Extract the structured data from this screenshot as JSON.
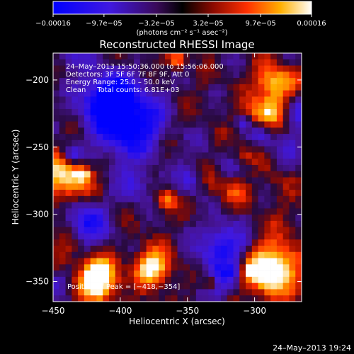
{
  "chart_data": {
    "type": "heatmap",
    "title": "Reconstructed RHESSI Image",
    "xlabel": "Heliocentric X (arcsec)",
    "ylabel": "Heliocentric Y (arcsec)",
    "xlim": [
      -450,
      -265
    ],
    "ylim": [
      -365,
      -180
    ],
    "x_ticks": [
      -450,
      -400,
      -350,
      -300
    ],
    "x_tick_labels": [
      "−450",
      "−400",
      "−350",
      "−300"
    ],
    "y_ticks": [
      -200,
      -250,
      -300,
      -350
    ],
    "y_tick_labels": [
      "−200",
      "−250",
      "−300",
      "−350"
    ],
    "colorbar": {
      "range": [
        -0.00016,
        0.00016
      ],
      "ticks": [
        -0.00016,
        -9.7e-05,
        -3.2e-05,
        3.2e-05,
        9.7e-05,
        0.00016
      ],
      "tick_labels": [
        "−0.00016",
        "−9.7e−05",
        "−3.2e−05",
        "3.2e−05",
        "9.7e−05",
        "0.00016"
      ],
      "unit_label": "(photons cm⁻² s⁻¹ asec⁻²)",
      "colors": [
        "#0000ff",
        "#5a1ecb",
        "#000000",
        "#c81e00",
        "#ff8c00",
        "#ffffff"
      ]
    },
    "annotations": [
      "24–May–2013 15:50:36.000 to 15:56:06.000",
      "Detectors: 3F 5F 6F 7F 8F 9F, Att 0",
      "Energy Range: 25.0 – 50.0 keV",
      "Clean     Total counts: 6.81E+03"
    ],
    "peak_label": "Position of Peak = [−418,−354]",
    "peak": [
      -418,
      -354
    ],
    "grid": false
  },
  "footer_timestamp": "24–May–2013 19:24"
}
